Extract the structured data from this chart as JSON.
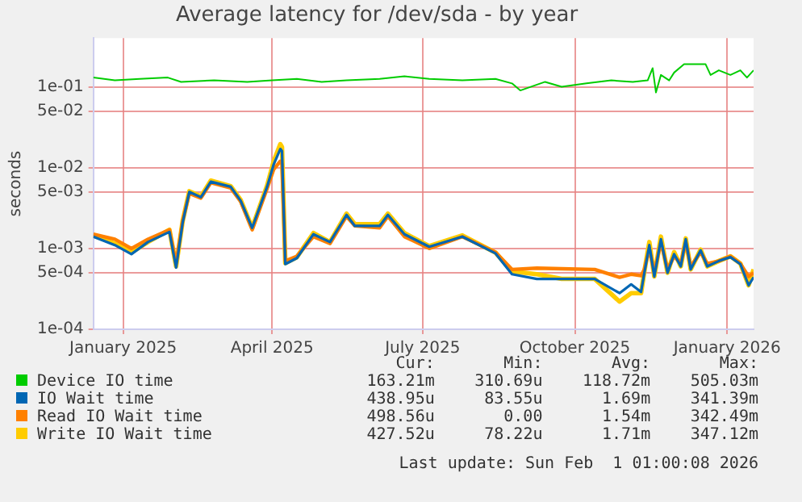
{
  "chart_data": {
    "type": "line",
    "title": "Average latency for /dev/sda - by year",
    "ylabel": "seconds",
    "log": "y",
    "grid": true,
    "legend": "bottom",
    "marker": "none",
    "line_style": "solid",
    "xlim": [
      "2024-12-28",
      "2026-01-31"
    ],
    "xticks": [
      {
        "value": "2025-01-15",
        "label": "January 2025"
      },
      {
        "value": "2025-04-15",
        "label": "April 2025"
      },
      {
        "value": "2025-07-15",
        "label": "July 2025"
      },
      {
        "value": "2025-10-15",
        "label": "October 2025"
      },
      {
        "value": "2026-01-15",
        "label": "January 2026"
      }
    ],
    "ylim": [
      0.0001,
      0.4
    ],
    "yticks": [
      {
        "value": 0.0001,
        "label": "1e-04"
      },
      {
        "value": 0.0005,
        "label": "5e-04"
      },
      {
        "value": 0.001,
        "label": "1e-03"
      },
      {
        "value": 0.005,
        "label": "5e-03"
      },
      {
        "value": 0.01,
        "label": "1e-02"
      },
      {
        "value": 0.05,
        "label": "5e-02"
      },
      {
        "value": 0.1,
        "label": "1e-01"
      }
    ],
    "series": [
      {
        "name": "Device IO time",
        "color": "#00cc00",
        "x": [
          "2024-12-28",
          "2025-01-10",
          "2025-01-25",
          "2025-02-11",
          "2025-02-19",
          "2025-03-11",
          "2025-03-31",
          "2025-04-15",
          "2025-04-30",
          "2025-05-15",
          "2025-05-30",
          "2025-06-19",
          "2025-07-04",
          "2025-07-19",
          "2025-08-08",
          "2025-08-28",
          "2025-09-07",
          "2025-09-12",
          "2025-09-27",
          "2025-10-07",
          "2025-10-22",
          "2025-11-06",
          "2025-11-19",
          "2025-11-28",
          "2025-12-01",
          "2025-12-03",
          "2025-12-06",
          "2025-12-11",
          "2025-12-14",
          "2025-12-20",
          "2026-01-02",
          "2026-01-05",
          "2026-01-10",
          "2026-01-17",
          "2026-01-23",
          "2026-01-27",
          "2026-01-31"
        ],
        "values": [
          0.13,
          0.12,
          0.125,
          0.13,
          0.115,
          0.12,
          0.115,
          0.12,
          0.125,
          0.115,
          0.12,
          0.125,
          0.135,
          0.125,
          0.12,
          0.125,
          0.11,
          0.09,
          0.115,
          0.1,
          0.11,
          0.12,
          0.115,
          0.12,
          0.17,
          0.085,
          0.14,
          0.12,
          0.15,
          0.19,
          0.19,
          0.14,
          0.16,
          0.14,
          0.16,
          0.13,
          0.16
        ]
      },
      {
        "name": "IO Wait time",
        "color": "#0066b3",
        "x": [
          "2024-12-28",
          "2025-01-10",
          "2025-01-20",
          "2025-01-30",
          "2025-02-12",
          "2025-02-16",
          "2025-02-20",
          "2025-02-24",
          "2025-03-03",
          "2025-03-09",
          "2025-03-21",
          "2025-03-27",
          "2025-04-03",
          "2025-04-12",
          "2025-04-16",
          "2025-04-20",
          "2025-04-21",
          "2025-04-23",
          "2025-04-30",
          "2025-05-10",
          "2025-05-20",
          "2025-05-30",
          "2025-06-04",
          "2025-06-19",
          "2025-06-24",
          "2025-07-04",
          "2025-07-19",
          "2025-08-08",
          "2025-08-28",
          "2025-09-07",
          "2025-09-22",
          "2025-10-07",
          "2025-10-27",
          "2025-11-11",
          "2025-11-18",
          "2025-11-24",
          "2025-11-26",
          "2025-11-29",
          "2025-12-02",
          "2025-12-06",
          "2025-12-10",
          "2025-12-14",
          "2025-12-18",
          "2025-12-21",
          "2025-12-24",
          "2025-12-30",
          "2026-01-03",
          "2026-01-10",
          "2026-01-17",
          "2026-01-23",
          "2026-01-28",
          "2026-01-31"
        ],
        "values": [
          0.0014,
          0.0011,
          0.00085,
          0.0012,
          0.0016,
          0.00058,
          0.0021,
          0.005,
          0.0043,
          0.0067,
          0.0058,
          0.0039,
          0.0018,
          0.0058,
          0.011,
          0.017,
          0.016,
          0.00064,
          0.00076,
          0.0015,
          0.0012,
          0.0026,
          0.0019,
          0.0019,
          0.0026,
          0.0015,
          0.00105,
          0.0014,
          0.00087,
          0.00048,
          0.00042,
          0.00042,
          0.00042,
          0.00028,
          0.00036,
          0.00029,
          0.0005,
          0.0011,
          0.00045,
          0.0013,
          0.0005,
          0.00085,
          0.0006,
          0.0013,
          0.00055,
          0.00095,
          0.0006,
          0.0007,
          0.00078,
          0.00064,
          0.00035,
          0.00044
        ]
      },
      {
        "name": "Read IO Wait time",
        "color": "#ff8000",
        "x": [
          "2024-12-28",
          "2025-01-10",
          "2025-01-20",
          "2025-01-30",
          "2025-02-12",
          "2025-02-16",
          "2025-02-20",
          "2025-02-24",
          "2025-03-03",
          "2025-03-09",
          "2025-03-21",
          "2025-03-27",
          "2025-04-03",
          "2025-04-12",
          "2025-04-16",
          "2025-04-20",
          "2025-04-21",
          "2025-04-23",
          "2025-04-30",
          "2025-05-10",
          "2025-05-20",
          "2025-05-30",
          "2025-06-04",
          "2025-06-19",
          "2025-06-24",
          "2025-07-04",
          "2025-07-19",
          "2025-08-08",
          "2025-08-28",
          "2025-09-07",
          "2025-09-22",
          "2025-10-07",
          "2025-10-27",
          "2025-11-11",
          "2025-11-18",
          "2025-11-24",
          "2025-11-26",
          "2025-11-29",
          "2025-12-02",
          "2025-12-06",
          "2025-12-10",
          "2025-12-14",
          "2025-12-18",
          "2025-12-21",
          "2025-12-24",
          "2025-12-30",
          "2026-01-03",
          "2026-01-10",
          "2026-01-17",
          "2026-01-23",
          "2026-01-28",
          "2026-01-31"
        ],
        "values": [
          0.0015,
          0.0013,
          0.001,
          0.0013,
          0.0017,
          0.00065,
          0.0022,
          0.0048,
          0.0042,
          0.0065,
          0.0056,
          0.0038,
          0.0017,
          0.0055,
          0.0095,
          0.012,
          0.011,
          0.0007,
          0.0008,
          0.0014,
          0.00115,
          0.0025,
          0.0019,
          0.0018,
          0.0025,
          0.0014,
          0.001,
          0.0014,
          0.0009,
          0.00055,
          0.00057,
          0.00056,
          0.00055,
          0.00044,
          0.00048,
          0.00046,
          0.00055,
          0.001,
          0.0005,
          0.0012,
          0.00055,
          0.0008,
          0.00065,
          0.0012,
          0.0006,
          0.0009,
          0.00065,
          0.0007,
          0.0008,
          0.00065,
          0.00045,
          0.0005
        ]
      },
      {
        "name": "Write IO Wait time",
        "color": "#ffcc00",
        "x": [
          "2024-12-28",
          "2025-01-10",
          "2025-01-20",
          "2025-01-30",
          "2025-02-12",
          "2025-02-16",
          "2025-02-20",
          "2025-02-24",
          "2025-03-03",
          "2025-03-09",
          "2025-03-21",
          "2025-03-27",
          "2025-04-03",
          "2025-04-12",
          "2025-04-16",
          "2025-04-20",
          "2025-04-21",
          "2025-04-23",
          "2025-04-30",
          "2025-05-10",
          "2025-05-20",
          "2025-05-30",
          "2025-06-04",
          "2025-06-19",
          "2025-06-24",
          "2025-07-04",
          "2025-07-19",
          "2025-08-08",
          "2025-08-28",
          "2025-09-07",
          "2025-09-22",
          "2025-10-07",
          "2025-10-27",
          "2025-11-11",
          "2025-11-18",
          "2025-11-24",
          "2025-11-26",
          "2025-11-29",
          "2025-12-02",
          "2025-12-06",
          "2025-12-10",
          "2025-12-14",
          "2025-12-18",
          "2025-12-21",
          "2025-12-24",
          "2025-12-30",
          "2026-01-03",
          "2026-01-10",
          "2026-01-17",
          "2026-01-23",
          "2026-01-28",
          "2026-01-31"
        ],
        "values": [
          0.00145,
          0.00115,
          0.00089,
          0.0012,
          0.0017,
          0.0006,
          0.0022,
          0.0051,
          0.0044,
          0.0069,
          0.0059,
          0.004,
          0.0018,
          0.006,
          0.012,
          0.0195,
          0.018,
          0.00066,
          0.00078,
          0.00155,
          0.0012,
          0.0027,
          0.002,
          0.002,
          0.0027,
          0.00155,
          0.00107,
          0.00145,
          0.00089,
          0.00052,
          0.00048,
          0.00042,
          0.00042,
          0.00022,
          0.00028,
          0.00028,
          0.00052,
          0.0012,
          0.00045,
          0.0014,
          0.0005,
          0.0009,
          0.0006,
          0.00133,
          0.00055,
          0.00097,
          0.0006,
          0.0007,
          0.0008,
          0.00065,
          0.00035,
          0.00055
        ]
      }
    ],
    "annotations": [
      "Cur:",
      "Min:",
      "Avg:",
      "Max:",
      "163.21m",
      "310.69u",
      "118.72m",
      "505.03m",
      "438.95u",
      "83.55u",
      "1.69m",
      "341.39m",
      "498.56u",
      "0.00",
      "1.54m",
      "342.49m",
      "427.52u",
      "78.22u",
      "1.71m",
      "347.12m",
      "Last update: Sun Feb  1 01:00:08 2026"
    ]
  }
}
